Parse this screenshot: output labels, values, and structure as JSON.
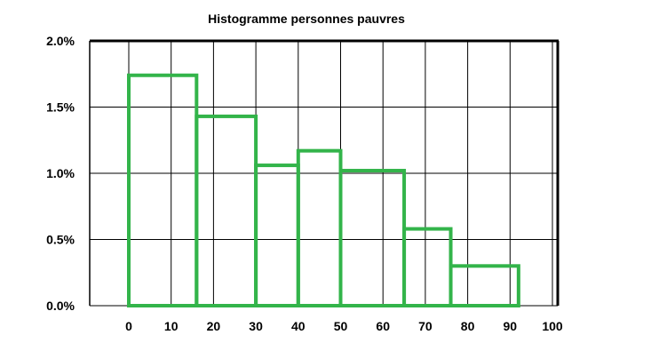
{
  "chart_data": {
    "type": "bar",
    "title": "Histogramme personnes pauvres",
    "xlabel": "",
    "ylabel": "",
    "x_ticks": [
      "0",
      "10",
      "20",
      "30",
      "40",
      "50",
      "60",
      "70",
      "80",
      "90",
      "100"
    ],
    "y_ticks": [
      "0.0%",
      "0.5%",
      "1.0%",
      "1.5%",
      "2.0%"
    ],
    "ylim": [
      0,
      2.0
    ],
    "y_unit": "%",
    "grid": true,
    "legend": "none",
    "bins": [
      {
        "start": 0,
        "end": 16,
        "value": 1.74
      },
      {
        "start": 16,
        "end": 30,
        "value": 1.43
      },
      {
        "start": 30,
        "end": 40,
        "value": 1.06
      },
      {
        "start": 40,
        "end": 50,
        "value": 1.17
      },
      {
        "start": 50,
        "end": 65,
        "value": 1.02
      },
      {
        "start": 65,
        "end": 76,
        "value": 0.58
      },
      {
        "start": 76,
        "end": 92,
        "value": 0.3
      }
    ],
    "colors": {
      "bar_outline": "#33b44a",
      "frame": "#000000",
      "grid": "#000000",
      "background": "#ffffff"
    }
  }
}
